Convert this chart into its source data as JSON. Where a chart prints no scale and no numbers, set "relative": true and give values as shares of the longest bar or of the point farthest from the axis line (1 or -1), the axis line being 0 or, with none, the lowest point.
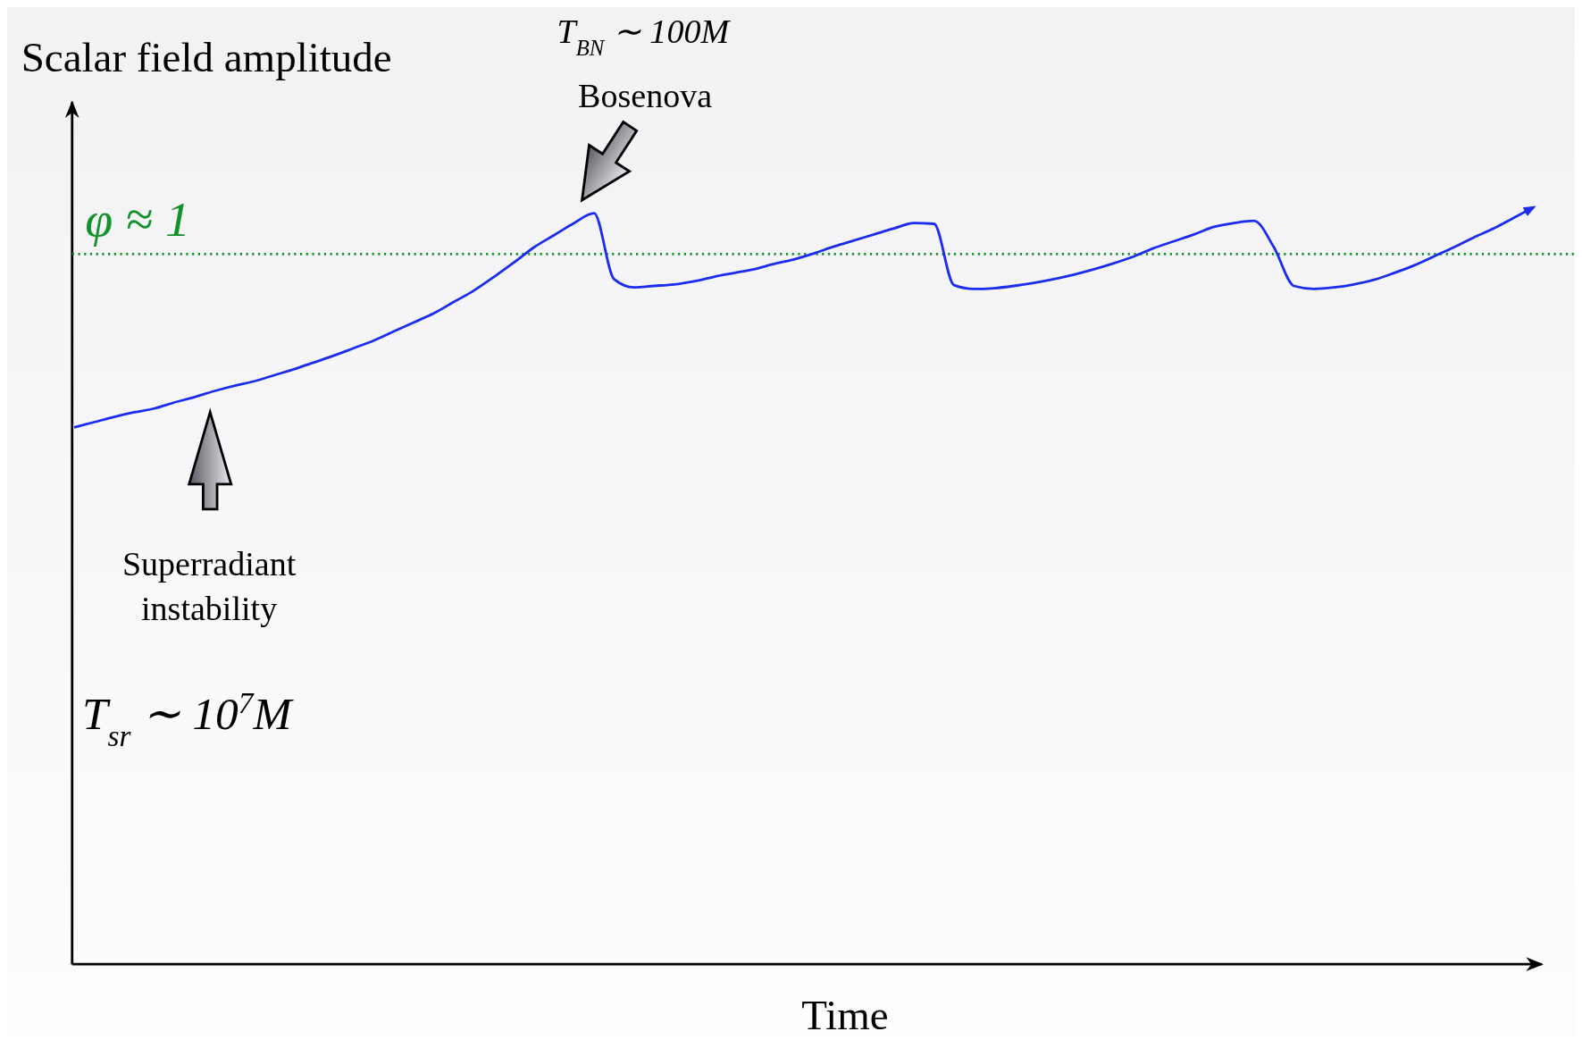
{
  "chart_data": {
    "type": "line",
    "relative": true,
    "ylabel": "Scalar field amplitude",
    "xlabel": "Time",
    "line_style": "solid",
    "categories": [
      null,
      null,
      null,
      null,
      null,
      null,
      null,
      null,
      null,
      null,
      null,
      null,
      null,
      null,
      null,
      null,
      null,
      null,
      null,
      null,
      null,
      null,
      null,
      null,
      null,
      null,
      null,
      null,
      null,
      null,
      null,
      null,
      null,
      null,
      null,
      null,
      null,
      null,
      null,
      null,
      null,
      null,
      null,
      null,
      null,
      null,
      null,
      null,
      null,
      null,
      null,
      null,
      null,
      null,
      null,
      null,
      null,
      null,
      null,
      null,
      null,
      null,
      null,
      null,
      null,
      null,
      null,
      null,
      null,
      null,
      null,
      null,
      null,
      null
    ],
    "series": [
      {
        "color": "#1a2cf0",
        "values": [
          0.709,
          0.716,
          0.723,
          0.729,
          0.734,
          0.742,
          0.749,
          0.757,
          0.764,
          0.77,
          0.778,
          0.786,
          0.795,
          0.804,
          0.814,
          0.824,
          0.836,
          0.848,
          0.86,
          0.875,
          0.89,
          0.908,
          0.927,
          0.947,
          0.963,
          0.979,
          0.992,
          0.905,
          0.894,
          0.896,
          0.898,
          0.902,
          0.908,
          0.913,
          0.918,
          0.925,
          0.931,
          0.939,
          0.948,
          0.956,
          0.964,
          0.972,
          0.979,
          0.978,
          0.897,
          0.892,
          0.893,
          0.896,
          0.9,
          0.905,
          0.911,
          0.918,
          0.926,
          0.935,
          0.946,
          0.955,
          0.964,
          0.974,
          0.979,
          0.982,
          0.947,
          0.896,
          0.892,
          0.894,
          0.898,
          0.904,
          0.913,
          0.923,
          0.935,
          0.947,
          0.96,
          0.972,
          0.986,
          1.0
        ]
      }
    ],
    "ref_lines": [
      {
        "axis": "y",
        "value": 0.938,
        "label": "φ ≈ 1",
        "color": "#13922a",
        "line_style": "dotted"
      }
    ],
    "annotations": [
      "T$_{BN}$ ∼ 100M",
      "Bosenova",
      "Superradiant instability",
      "T$_{sr}$ ∼ 10$^{7}$M"
    ]
  }
}
